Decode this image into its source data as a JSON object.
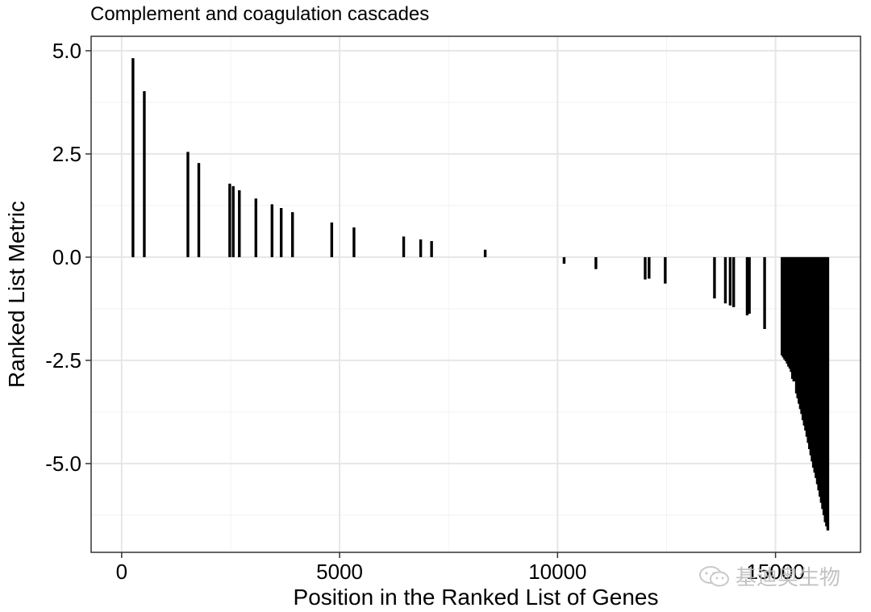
{
  "chart_data": {
    "type": "bar",
    "title": "Complement and coagulation cascades",
    "xlabel": "Position in the Ranked List of Genes",
    "ylabel": "Ranked List Metric",
    "xlim": [
      -700,
      16950
    ],
    "ylim": [
      -7.15,
      5.35
    ],
    "x_ticks": [
      0,
      5000,
      10000,
      15000
    ],
    "x_tick_labels": [
      "0",
      "5000",
      "10000",
      "15000"
    ],
    "y_ticks": [
      5.0,
      2.5,
      0.0,
      -2.5,
      -5.0
    ],
    "y_tick_labels": [
      "5.0",
      "2.5",
      "0.0",
      "-2.5",
      "-5.0"
    ],
    "grid": true,
    "theme": "bw",
    "bar_color": "#000000",
    "series": [
      {
        "x": [
          260,
          520,
          1520,
          1770,
          2480,
          2560,
          2700,
          3080,
          3450,
          3660,
          3920,
          4820,
          5330,
          6470,
          6860,
          7110,
          8340,
          10150,
          10880,
          12010,
          12100,
          12470,
          13600,
          13850,
          13960,
          14040,
          14350,
          14400,
          14750,
          15150,
          15180,
          15210,
          15240,
          15270,
          15300,
          15330,
          15360,
          15390,
          15420,
          15450,
          15480,
          15510,
          15540,
          15570,
          15600,
          15630,
          15660,
          15690,
          15720,
          15750,
          15780,
          15810,
          15840,
          15870,
          15900,
          15930,
          15960,
          15990,
          16020,
          16050,
          16080,
          16110,
          16140,
          16170,
          16200
        ],
        "values": [
          4.82,
          4.02,
          2.55,
          2.28,
          1.78,
          1.72,
          1.62,
          1.42,
          1.28,
          1.19,
          1.09,
          0.84,
          0.72,
          0.5,
          0.43,
          0.39,
          0.18,
          -0.16,
          -0.29,
          -0.54,
          -0.52,
          -0.64,
          -1.0,
          -1.12,
          -1.17,
          -1.21,
          -1.41,
          -1.37,
          -1.74,
          -2.38,
          -2.43,
          -2.48,
          -2.52,
          -2.58,
          -2.65,
          -2.7,
          -2.78,
          -2.95,
          -3.01,
          -2.6,
          -3.3,
          -3.42,
          -3.55,
          -3.68,
          -3.8,
          -3.95,
          -4.08,
          -4.2,
          -4.35,
          -4.5,
          -4.65,
          -4.8,
          -4.95,
          -5.1,
          -5.22,
          -5.35,
          -5.5,
          -5.65,
          -5.8,
          -5.95,
          -6.1,
          -6.25,
          -6.42,
          -6.52,
          -6.62
        ]
      }
    ]
  },
  "watermark": {
    "text": "基迪奥生物",
    "icon": "wechat-icon"
  }
}
